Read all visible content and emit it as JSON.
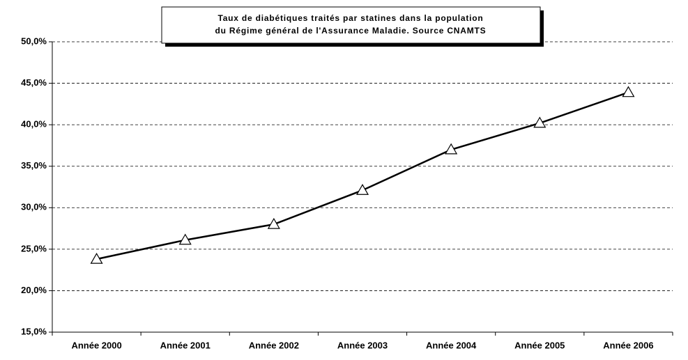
{
  "chart_data": {
    "type": "line",
    "title": [
      "Taux de diabétiques traités par statines dans la population",
      "du Régime général de l'Assurance Maladie. Source CNAMTS"
    ],
    "categories": [
      "Année 2000",
      "Année 2001",
      "Année 2002",
      "Année 2003",
      "Année 2004",
      "Année 2005",
      "Année 2006"
    ],
    "series": [
      {
        "color": "#000000",
        "values": [
          23.8,
          26.1,
          28.0,
          32.1,
          37.0,
          40.2,
          43.9
        ]
      }
    ],
    "ylim": [
      15,
      50
    ],
    "yticks": [
      {
        "value": 15,
        "label": "15,0%"
      },
      {
        "value": 20,
        "label": "20,0%"
      },
      {
        "value": 25,
        "label": "25,0%"
      },
      {
        "value": 30,
        "label": "30,0%"
      },
      {
        "value": 35,
        "label": "35,0%"
      },
      {
        "value": 40,
        "label": "40,0%"
      },
      {
        "value": 45,
        "label": "45,0%"
      },
      {
        "value": 50,
        "label": "50,0%"
      }
    ],
    "grid": true
  }
}
